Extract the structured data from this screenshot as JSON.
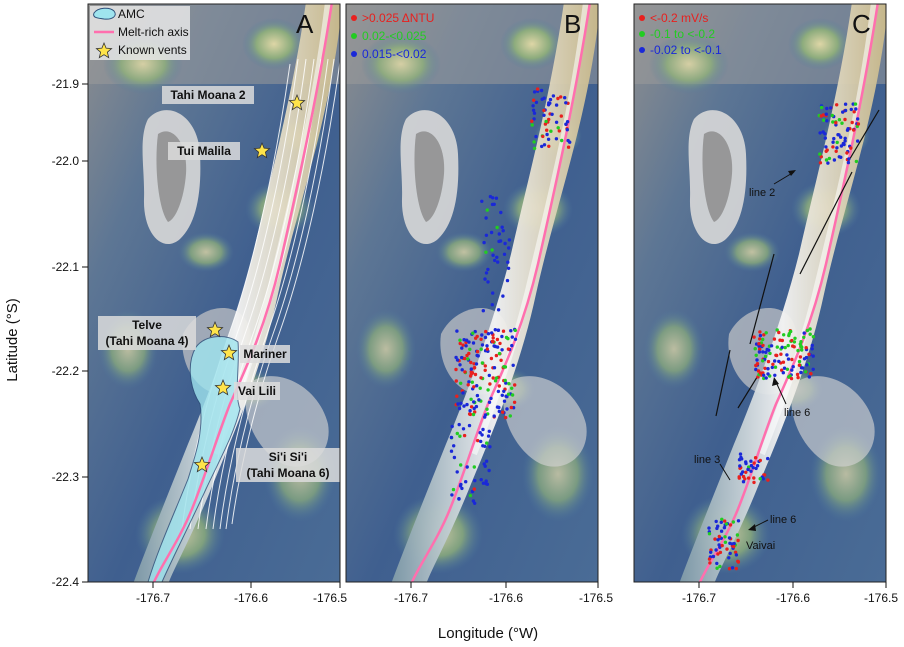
{
  "axes": {
    "xlabel": "Longitude (°W)",
    "ylabel": "Latitude (°S)",
    "xticks": [
      "-176.7",
      "-176.6",
      "-176.5"
    ],
    "yticks": [
      "-21.9",
      "-22.0",
      "-22.1",
      "-22.2",
      "-22.3",
      "-22.4"
    ]
  },
  "panels": {
    "A": {
      "label": "A",
      "legend": [
        "AMC",
        "Melt-rich axis",
        "Known vents"
      ],
      "sites": {
        "tahi2": "Tahi Moana 2",
        "tui": "Tui Malila",
        "telve1": "Telve",
        "telve2": "(Tahi Moana 4)",
        "mariner": "Mariner",
        "vai": "Vai Lili",
        "sisi1": "Si'i Si'i",
        "sisi2": "(Tahi Moana 6)"
      }
    },
    "B": {
      "label": "B",
      "legend": [
        ">0.025 ΔNTU",
        "0.02-<0.025",
        "0.015-<0.02"
      ]
    },
    "C": {
      "label": "C",
      "legend": [
        "<-0.2 mV/s",
        "-0.1 to <-0.2",
        "-0.02 to <-0.1"
      ],
      "annotations": {
        "line2": "line 2",
        "line6a": "line 6",
        "line3": "line 3",
        "line6b": "line 6",
        "vaivai": "Vaivai"
      }
    }
  },
  "colors": {
    "high": "#e8201e",
    "mid": "#22cc22",
    "low": "#1a28d8",
    "axis_line": "#ff6fae",
    "amc": "#9fe4ee",
    "vent": "#ffe44a"
  }
}
